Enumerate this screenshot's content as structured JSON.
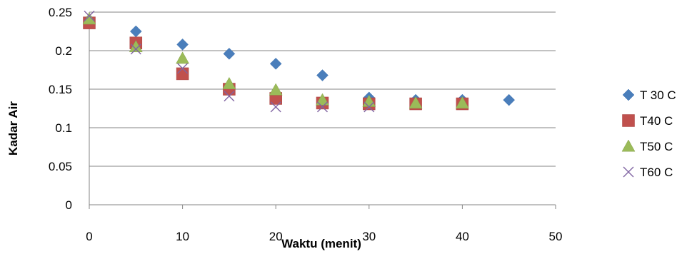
{
  "chart_data": {
    "type": "scatter",
    "title": "",
    "xlabel": "Waktu (menit)",
    "ylabel": "Kadar Air",
    "xlim": [
      0,
      50
    ],
    "ylim": [
      0,
      0.25
    ],
    "xticks": [
      0,
      10,
      20,
      30,
      40,
      50
    ],
    "yticks": [
      0,
      0.05,
      0.1,
      0.15,
      0.2,
      0.25
    ],
    "xtick_labels": [
      "0",
      "10",
      "20",
      "30",
      "40",
      "50"
    ],
    "ytick_labels": [
      "0",
      "0.05",
      "0.1",
      "0.15",
      "0.2",
      "0.25"
    ],
    "grid": "horizontal",
    "legend_position": "right",
    "series": [
      {
        "name": "T 30 C",
        "marker": "diamond",
        "color": "#4a7ebb",
        "x": [
          0,
          5,
          10,
          15,
          20,
          25,
          30,
          35,
          40,
          45
        ],
        "y": [
          0.24,
          0.225,
          0.208,
          0.196,
          0.183,
          0.168,
          0.139,
          0.136,
          0.136,
          0.136
        ]
      },
      {
        "name": "T40 C",
        "marker": "square",
        "color": "#c0504d",
        "x": [
          0,
          5,
          10,
          15,
          20,
          25,
          30,
          35,
          40
        ],
        "y": [
          0.236,
          0.21,
          0.17,
          0.15,
          0.138,
          0.132,
          0.131,
          0.131,
          0.131
        ]
      },
      {
        "name": "T50 C",
        "marker": "triangle",
        "color": "#9bbb59",
        "x": [
          0,
          5,
          10,
          15,
          20,
          25,
          30,
          35,
          40
        ],
        "y": [
          0.241,
          0.205,
          0.19,
          0.157,
          0.149,
          0.136,
          0.134,
          0.132,
          0.132
        ]
      },
      {
        "name": "T60 C",
        "marker": "x",
        "color": "#8064a2",
        "x": [
          0,
          5,
          10,
          15,
          20,
          25,
          30
        ],
        "y": [
          0.245,
          0.202,
          0.177,
          0.141,
          0.127,
          0.127,
          0.127
        ]
      }
    ]
  }
}
